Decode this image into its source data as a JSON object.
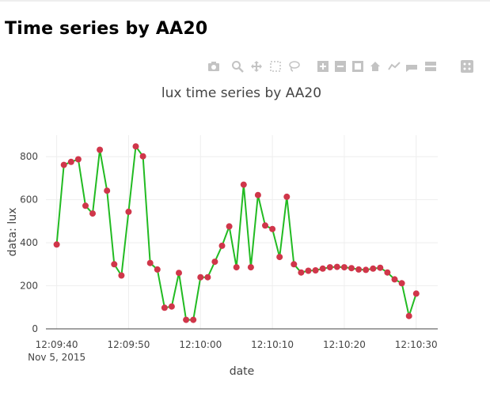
{
  "page": {
    "title": "Time series by AA20"
  },
  "modebar": {
    "icons": [
      "camera-icon",
      "zoom-icon",
      "pan-icon",
      "box-select-icon",
      "lasso-icon",
      "zoom-in-icon",
      "zoom-out-icon",
      "autoscale-icon",
      "reset-axes-icon",
      "spike-lines-icon",
      "hover-closest-icon",
      "hover-compare-icon",
      "plotly-logo-icon"
    ]
  },
  "chart_data": {
    "type": "line",
    "title": "lux time series by AA20",
    "xlabel": "date",
    "ylabel": "data: lux",
    "x_start": "2015-11-05 12:09:40",
    "xlim": [
      "2015-11-05 12:09:38.5",
      "2015-11-05 12:10:33"
    ],
    "ylim": [
      0,
      900
    ],
    "x_tick_labels": [
      "12:09:40",
      "12:09:50",
      "12:10:00",
      "12:10:10",
      "12:10:20",
      "12:10:30"
    ],
    "x_tick_sublabel": "Nov 5, 2015",
    "y_ticks": [
      0,
      200,
      400,
      600,
      800
    ],
    "grid": true,
    "line_color": "#22bb22",
    "marker_color": "#d0364a",
    "series": [
      {
        "x": [
          "12:09:40",
          "12:09:41",
          "12:09:42",
          "12:09:43",
          "12:09:44",
          "12:09:45",
          "12:09:46",
          "12:09:47",
          "12:09:48",
          "12:09:49",
          "12:09:50",
          "12:09:51",
          "12:09:52",
          "12:09:53",
          "12:09:54",
          "12:09:55",
          "12:09:56",
          "12:09:57",
          "12:09:58",
          "12:09:59",
          "12:10:00",
          "12:10:01",
          "12:10:02",
          "12:10:03",
          "12:10:04",
          "12:10:05",
          "12:10:06",
          "12:10:07",
          "12:10:08",
          "12:10:09",
          "12:10:10",
          "12:10:11",
          "12:10:12",
          "12:10:13",
          "12:10:14",
          "12:10:15",
          "12:10:16",
          "12:10:17",
          "12:10:18",
          "12:10:19",
          "12:10:20",
          "12:10:21",
          "12:10:22",
          "12:10:23",
          "12:10:24",
          "12:10:25",
          "12:10:26",
          "12:10:27",
          "12:10:28",
          "12:10:29",
          "12:10:30"
        ],
        "values": [
          392,
          762,
          776,
          788,
          572,
          536,
          832,
          642,
          300,
          248,
          544,
          848,
          802,
          306,
          276,
          98,
          104,
          260,
          42,
          42,
          240,
          240,
          312,
          386,
          476,
          286,
          670,
          286,
          622,
          480,
          464,
          334,
          614,
          300,
          262,
          270,
          272,
          280,
          286,
          288,
          286,
          282,
          276,
          274,
          280,
          284,
          262,
          230,
          212,
          60,
          164
        ]
      }
    ]
  }
}
